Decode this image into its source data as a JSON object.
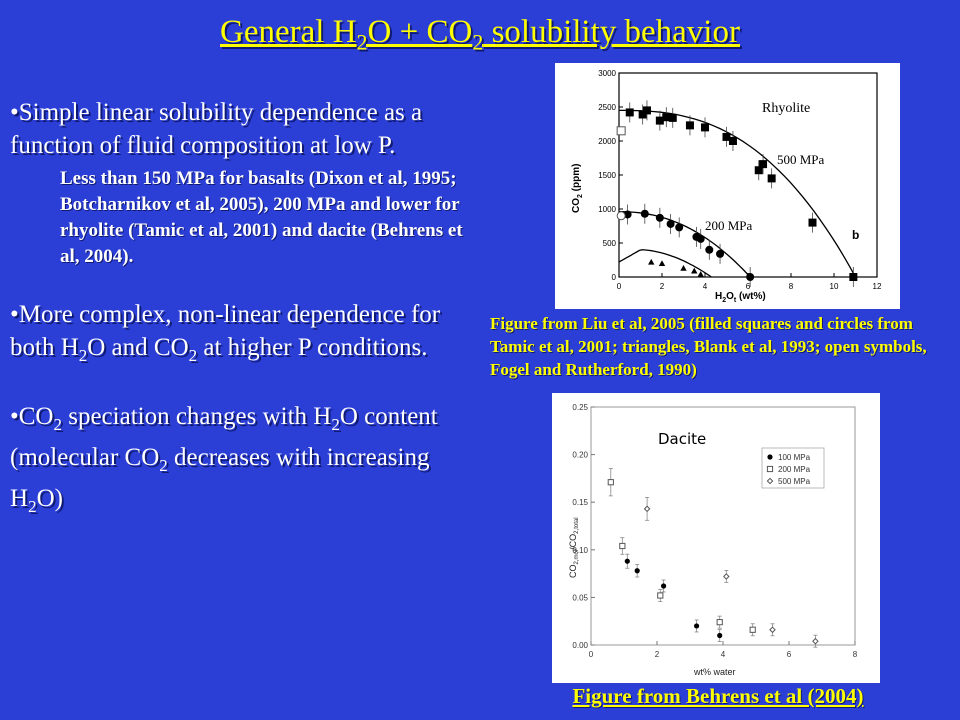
{
  "title": {
    "pre": "General H",
    "sub1": "2",
    "mid": "O + CO",
    "sub2": "2",
    "post": " solubility behavior"
  },
  "bullets": {
    "b1": "•Simple linear solubility dependence as a function of fluid composition at low P.",
    "b1_sub": "Less than 150 MPa for basalts (Dixon et al, 1995; Botcharnikov et al, 2005), 200 MPa and lower for rhyolite (Tamic et al, 2001) and dacite (Behrens et al, 2004).",
    "b2_a": "•More complex, non-linear dependence for both H",
    "b2_s1": "2",
    "b2_b": "O and CO",
    "b2_s2": "2",
    "b2_c": " at higher P conditions.",
    "b3_a": "•CO",
    "b3_s1": "2",
    "b3_b": " speciation changes with H",
    "b3_s2": "2",
    "b3_c": "O content (molecular CO",
    "b3_s3": "2",
    "b3_d": " decreases with increasing H",
    "b3_s4": "2",
    "b3_e": "O)"
  },
  "caption1": "Figure from Liu et al, 2005 (filled squares and circles from Tamic et al, 2001; triangles, Blank et al, 1993; open symbols, Fogel and Rutherford, 1990)",
  "caption2": "Figure from Behrens et al (2004)",
  "colors": {
    "background": "#2b3fd6",
    "title": "#ffff00",
    "caption": "#ffff00",
    "text": "#ffffff"
  },
  "chart_data": [
    {
      "type": "scatter",
      "ylabel_main": "CO",
      "ylabel_sub": "2",
      "ylabel_unit": " (ppm)",
      "xlabel_main": "H",
      "xlabel_sub1": "2",
      "xlabel_mid": "O",
      "xlabel_sub2": "t",
      "xlabel_unit": " (wt%)",
      "xlim": [
        0,
        12
      ],
      "ylim": [
        0,
        3000
      ],
      "x_ticks": [
        "0",
        "2",
        "4",
        "6",
        "8",
        "10",
        "12"
      ],
      "y_ticks": [
        "0",
        "500",
        "1000",
        "1500",
        "2000",
        "2500",
        "3000"
      ],
      "annotations": {
        "rock": "Rhyolite",
        "p500": "500 MPa",
        "p200": "200 MPa",
        "panel": "b"
      },
      "series": [
        {
          "marker": "filled-square",
          "points": [
            [
              0.5,
              2420
            ],
            [
              1.1,
              2390
            ],
            [
              1.3,
              2450
            ],
            [
              1.9,
              2300
            ],
            [
              2.2,
              2350
            ],
            [
              2.5,
              2340
            ],
            [
              3.3,
              2230
            ],
            [
              4.0,
              2200
            ],
            [
              5.0,
              2060
            ],
            [
              5.3,
              2000
            ],
            [
              6.5,
              1570
            ],
            [
              6.7,
              1660
            ],
            [
              7.1,
              1450
            ],
            [
              9.0,
              800
            ],
            [
              10.9,
              0
            ]
          ]
        },
        {
          "marker": "filled-circle",
          "points": [
            [
              0.4,
              920
            ],
            [
              1.2,
              930
            ],
            [
              1.9,
              870
            ],
            [
              2.4,
              780
            ],
            [
              2.8,
              730
            ],
            [
              3.6,
              590
            ],
            [
              3.8,
              560
            ],
            [
              4.2,
              400
            ],
            [
              4.7,
              340
            ],
            [
              6.1,
              0
            ]
          ]
        },
        {
          "marker": "filled-triangle",
          "points": [
            [
              1.5,
              220
            ],
            [
              2.0,
              200
            ],
            [
              3.0,
              130
            ],
            [
              3.5,
              90
            ],
            [
              3.8,
              40
            ]
          ]
        },
        {
          "marker": "open-square",
          "points": [
            [
              0.1,
              2150
            ]
          ]
        },
        {
          "marker": "open-circle",
          "points": [
            [
              0.1,
              900
            ]
          ]
        }
      ]
    },
    {
      "type": "scatter",
      "ylabel": "CO2,mol/CO2,total",
      "xlabel": "wt% water",
      "xlim": [
        0,
        8
      ],
      "ylim": [
        0,
        0.25
      ],
      "x_ticks": [
        "0",
        "2",
        "4",
        "6",
        "8"
      ],
      "y_ticks": [
        "0.00",
        "0.05",
        "0.10",
        "0.15",
        "0.20",
        "0.25"
      ],
      "annotations": {
        "rock": "Dacite"
      },
      "series": [
        {
          "name": "100 MPa",
          "marker": "filled-circle",
          "points": [
            [
              1.1,
              0.088
            ],
            [
              1.4,
              0.078
            ],
            [
              2.2,
              0.062
            ],
            [
              3.2,
              0.02
            ],
            [
              3.9,
              0.01
            ]
          ]
        },
        {
          "name": "200 MPa",
          "marker": "open-square",
          "points": [
            [
              0.6,
              0.171
            ],
            [
              0.95,
              0.104
            ],
            [
              2.1,
              0.052
            ],
            [
              3.9,
              0.024
            ],
            [
              4.9,
              0.016
            ]
          ]
        },
        {
          "name": "500 MPa",
          "marker": "open-diamond",
          "points": [
            [
              1.7,
              0.143
            ],
            [
              4.1,
              0.072
            ],
            [
              5.5,
              0.016
            ],
            [
              6.8,
              0.004
            ]
          ]
        }
      ]
    }
  ]
}
